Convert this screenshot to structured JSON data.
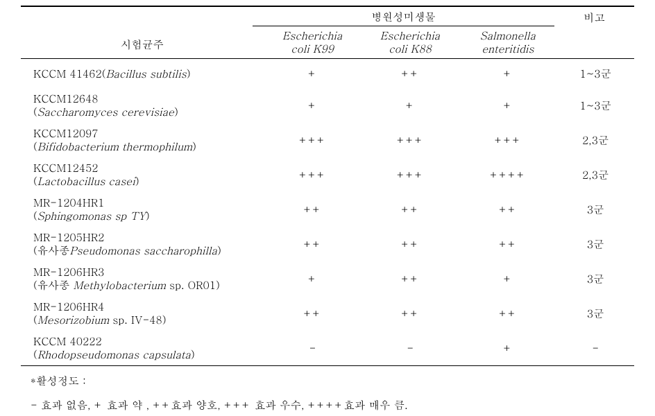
{
  "header": {
    "strain_label": "시험균주",
    "pathogen_group": "병원성미생물",
    "note_label": "비고",
    "pathogens": [
      {
        "name_it": "Escherichia",
        "line2": "coli K99"
      },
      {
        "name_it": "Escherichia",
        "line2": "coli K88"
      },
      {
        "name_it": "Salmonella",
        "line2": "enteritidis"
      }
    ]
  },
  "rows": [
    {
      "main": "KCCM 41462(",
      "main_it": "Bacillus subtilis",
      "main_after": ")",
      "sub": "",
      "p": [
        "+",
        "++",
        "+"
      ],
      "note": "1~3군",
      "two": false
    },
    {
      "main": "KCCM12648",
      "sub_pre": "(",
      "sub_it": "Saccharomyces cerevisiae",
      "sub_post": ")",
      "p": [
        "+",
        "+",
        "+"
      ],
      "note": "1~3군",
      "two": true
    },
    {
      "main": "KCCM12097",
      "sub_pre": "(",
      "sub_it": "Bifidobacterium thermophilum",
      "sub_post": ")",
      "p": [
        "+++",
        "+++",
        "+++"
      ],
      "note": "2,3군",
      "two": true
    },
    {
      "main": "KCCM12452",
      "sub_pre": "(",
      "sub_it": "Lactobacillus casei",
      "sub_post": ")",
      "p": [
        "+++",
        "+++",
        "++++"
      ],
      "note": "2,3군",
      "two": true
    },
    {
      "main": "MR-1204HR1",
      "sub_pre": "(",
      "sub_it": "Sphingomonas sp TY",
      "sub_post": ")",
      "p": [
        "++",
        "++",
        "++"
      ],
      "note": "3군",
      "two": true
    },
    {
      "main": "MR-1205HR2",
      "sub_pre": "(유사종",
      "sub_it": "Pseudomonas saccharophilla",
      "sub_post": ")",
      "p": [
        "++",
        "++",
        "++"
      ],
      "note": "3군",
      "two": true
    },
    {
      "main": "MR-1206HR3",
      "sub_pre": "(유사종  ",
      "sub_it": "Methylobacterium",
      "sub_post": " sp. OR01)",
      "p": [
        "+",
        "++",
        "+"
      ],
      "note": "3군",
      "two": true
    },
    {
      "main": "MR-1206HR4",
      "sub_pre": "(",
      "sub_it": "Mesorizobium",
      "sub_post": " sp. IV-48)",
      "p": [
        "++",
        "++",
        "++"
      ],
      "note": "3군",
      "two": true
    },
    {
      "main": "KCCM 40222",
      "sub_pre": "(",
      "sub_it": "Rhodopseudomonas capsulata",
      "sub_post": ")",
      "p": [
        "-",
        "-",
        "+"
      ],
      "note": "-",
      "two": true
    }
  ],
  "footnote": {
    "line1": "*활성정도 :",
    "line2": "- 효과 없음,   + 효과 약 ,  ++효과 양호,  +++ 효과 우수,  ++++효과 매우 큼."
  }
}
